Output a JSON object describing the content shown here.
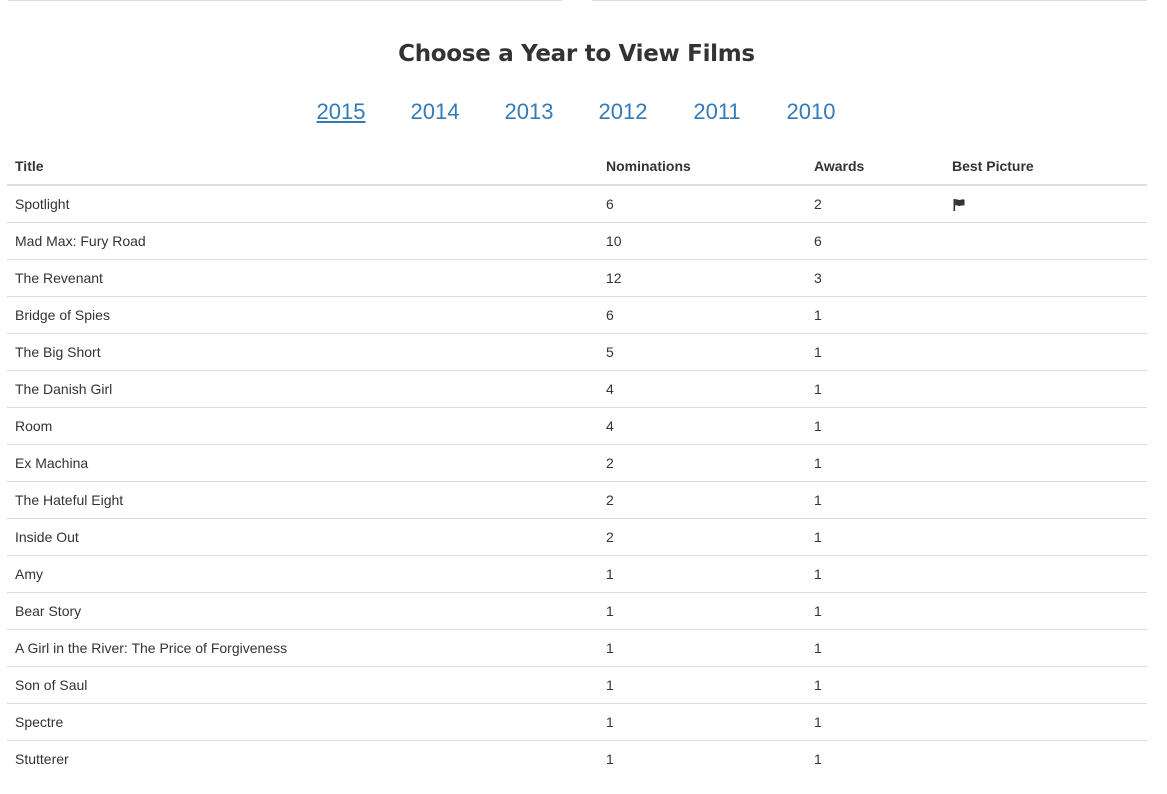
{
  "page": {
    "title": "Choose a Year to View Films"
  },
  "year_nav": {
    "years": [
      "2015",
      "2014",
      "2013",
      "2012",
      "2011",
      "2010"
    ],
    "active": "2015"
  },
  "table": {
    "headers": {
      "title": "Title",
      "nominations": "Nominations",
      "awards": "Awards",
      "best_picture": "Best Picture"
    },
    "rows": [
      {
        "title": "Spotlight",
        "nominations": "6",
        "awards": "2",
        "best_picture": true,
        "best_picture_icon": "flag-icon"
      },
      {
        "title": "Mad Max: Fury Road",
        "nominations": "10",
        "awards": "6",
        "best_picture": false
      },
      {
        "title": "The Revenant",
        "nominations": "12",
        "awards": "3",
        "best_picture": false
      },
      {
        "title": "Bridge of Spies",
        "nominations": "6",
        "awards": "1",
        "best_picture": false
      },
      {
        "title": "The Big Short",
        "nominations": "5",
        "awards": "1",
        "best_picture": false
      },
      {
        "title": "The Danish Girl",
        "nominations": "4",
        "awards": "1",
        "best_picture": false
      },
      {
        "title": "Room",
        "nominations": "4",
        "awards": "1",
        "best_picture": false
      },
      {
        "title": "Ex Machina",
        "nominations": "2",
        "awards": "1",
        "best_picture": false
      },
      {
        "title": "The Hateful Eight",
        "nominations": "2",
        "awards": "1",
        "best_picture": false
      },
      {
        "title": "Inside Out",
        "nominations": "2",
        "awards": "1",
        "best_picture": false
      },
      {
        "title": "Amy",
        "nominations": "1",
        "awards": "1",
        "best_picture": false
      },
      {
        "title": "Bear Story",
        "nominations": "1",
        "awards": "1",
        "best_picture": false
      },
      {
        "title": "A Girl in the River: The Price of Forgiveness",
        "nominations": "1",
        "awards": "1",
        "best_picture": false
      },
      {
        "title": "Son of Saul",
        "nominations": "1",
        "awards": "1",
        "best_picture": false
      },
      {
        "title": "Spectre",
        "nominations": "1",
        "awards": "1",
        "best_picture": false
      },
      {
        "title": "Stutterer",
        "nominations": "1",
        "awards": "1",
        "best_picture": false
      }
    ]
  },
  "colors": {
    "link": "#337ab7",
    "text": "#333333",
    "border": "#dddddd"
  }
}
